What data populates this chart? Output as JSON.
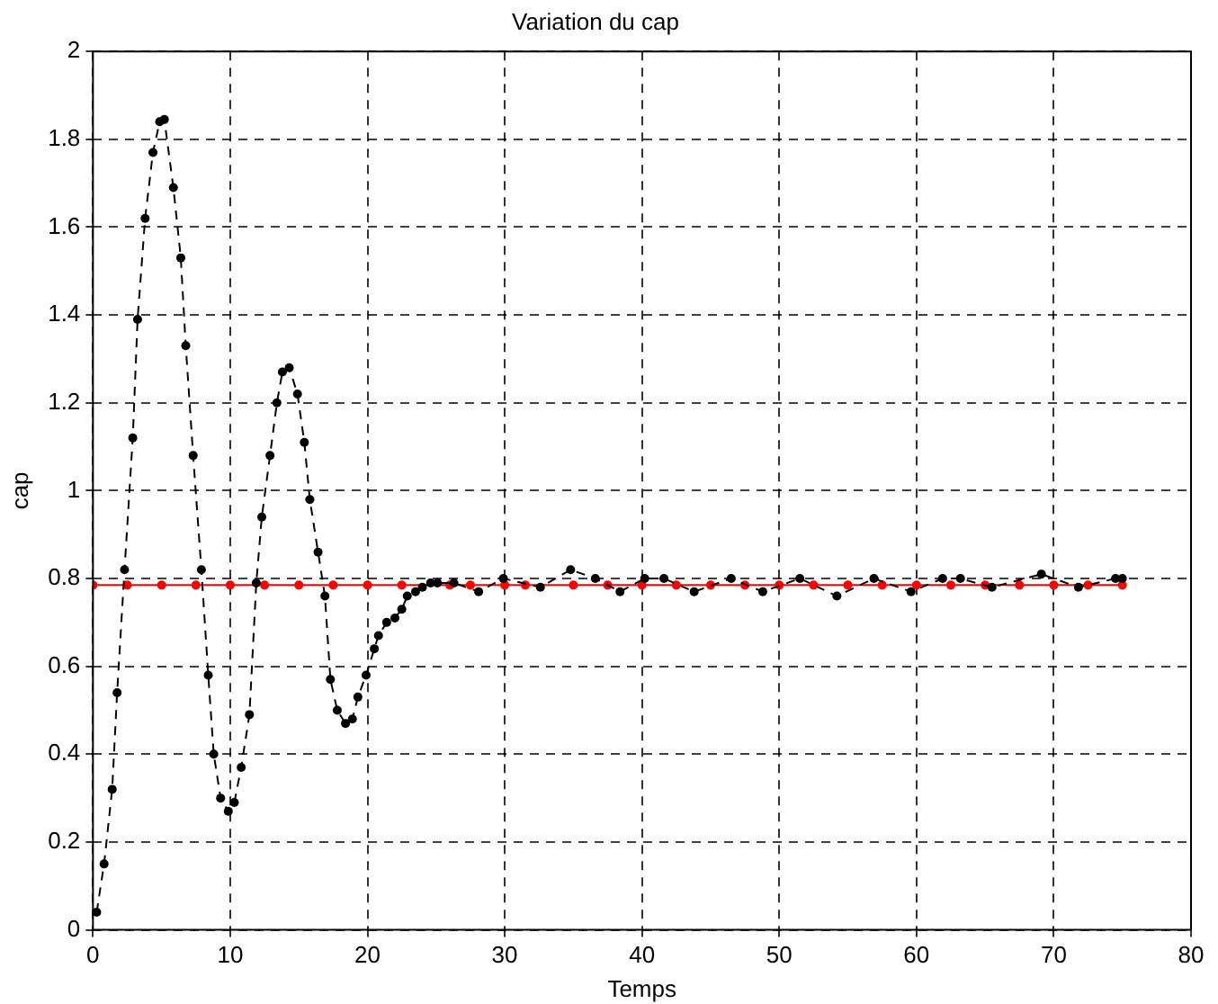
{
  "chart_data": {
    "type": "line",
    "title": "Variation du cap",
    "xlabel": "Temps",
    "ylabel": "cap",
    "xlim": [
      0,
      80
    ],
    "xticks": [
      0,
      10,
      20,
      30,
      40,
      50,
      60,
      70,
      80
    ],
    "ylim": [
      0,
      2
    ],
    "yticks": [
      0,
      0.2,
      0.4,
      0.6,
      0.8,
      1,
      1.2,
      1.4,
      1.6,
      1.8,
      2
    ],
    "grid": true,
    "legend": false,
    "marker": "circle",
    "series": [
      {
        "color": "#ff0000",
        "line_style": "solid",
        "x": [
          0,
          2.5,
          5,
          7.5,
          10,
          12.5,
          15,
          17.5,
          20,
          22.5,
          26,
          27.5,
          30,
          31.5,
          35,
          37.5,
          40,
          42.5,
          45,
          47.5,
          50,
          52.5,
          55,
          57.5,
          60,
          62.5,
          65,
          67.5,
          70,
          72.5,
          75
        ],
        "values": [
          0.785,
          0.785,
          0.785,
          0.785,
          0.785,
          0.785,
          0.785,
          0.785,
          0.785,
          0.785,
          0.785,
          0.785,
          0.785,
          0.785,
          0.785,
          0.785,
          0.785,
          0.785,
          0.785,
          0.785,
          0.785,
          0.785,
          0.785,
          0.785,
          0.785,
          0.785,
          0.785,
          0.785,
          0.785,
          0.785,
          0.785
        ]
      },
      {
        "color": "#000000",
        "line_style": "dashed",
        "x": [
          0.27,
          0.81,
          1.4,
          1.76,
          2.3,
          2.9,
          3.25,
          3.8,
          4.37,
          4.86,
          5.2,
          5.86,
          6.4,
          6.76,
          7.3,
          7.9,
          8.4,
          8.8,
          9.3,
          9.86,
          10.3,
          10.8,
          11.4,
          11.9,
          12.3,
          12.9,
          13.4,
          13.8,
          14.3,
          14.9,
          15.4,
          15.8,
          16.4,
          16.9,
          17.3,
          17.8,
          18.4,
          18.9,
          19.3,
          19.9,
          20.5,
          20.8,
          21.4,
          22,
          22.5,
          22.9,
          23.5,
          24,
          24.6,
          25.1,
          26.3,
          28.1,
          29.9,
          32.6,
          34.8,
          36.6,
          38.4,
          40.2,
          41.6,
          43.8,
          46.5,
          48.8,
          51.5,
          54.2,
          56.9,
          59.6,
          61.9,
          63.2,
          65.5,
          69.1,
          71.8,
          74.5,
          75
        ],
        "values": [
          0.04,
          0.15,
          0.32,
          0.54,
          0.82,
          1.12,
          1.39,
          1.62,
          1.77,
          1.84,
          1.845,
          1.69,
          1.53,
          1.33,
          1.08,
          0.82,
          0.58,
          0.4,
          0.3,
          0.27,
          0.29,
          0.37,
          0.49,
          0.79,
          0.94,
          1.08,
          1.2,
          1.27,
          1.28,
          1.22,
          1.11,
          0.98,
          0.86,
          0.76,
          0.57,
          0.5,
          0.47,
          0.48,
          0.53,
          0.58,
          0.64,
          0.67,
          0.7,
          0.71,
          0.73,
          0.76,
          0.77,
          0.78,
          0.79,
          0.79,
          0.79,
          0.77,
          0.8,
          0.78,
          0.82,
          0.8,
          0.77,
          0.8,
          0.8,
          0.77,
          0.8,
          0.77,
          0.8,
          0.76,
          0.8,
          0.77,
          0.8,
          0.8,
          0.78,
          0.81,
          0.78,
          0.8,
          0.8
        ]
      }
    ]
  }
}
